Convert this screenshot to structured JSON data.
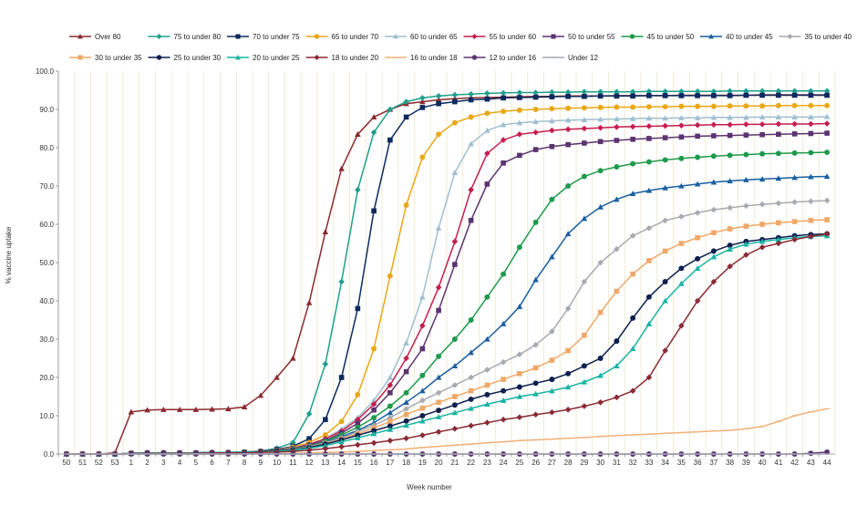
{
  "chart_data": {
    "type": "line",
    "title": "",
    "xlabel": "Week number",
    "ylabel": "% vaccine uptake",
    "ylim": [
      0,
      100
    ],
    "yticks": [
      "0.0",
      "10.0",
      "20.0",
      "30.0",
      "40.0",
      "50.0",
      "60.0",
      "70.0",
      "80.0",
      "90.0",
      "100.0"
    ],
    "grid": "vertical",
    "legend": "top",
    "categories": [
      "50",
      "51",
      "52",
      "53",
      "1",
      "2",
      "3",
      "4",
      "5",
      "6",
      "7",
      "8",
      "9",
      "10",
      "11",
      "12",
      "13",
      "14",
      "15",
      "16",
      "17",
      "18",
      "19",
      "20",
      "21",
      "22",
      "23",
      "24",
      "25",
      "26",
      "27",
      "28",
      "29",
      "30",
      "31",
      "32",
      "33",
      "34",
      "35",
      "36",
      "37",
      "38",
      "39",
      "40",
      "41",
      "42",
      "43",
      "44"
    ],
    "series": [
      {
        "name": "Over 80",
        "color": "#8b2a2e",
        "marker": "triangle",
        "values": [
          0,
          0,
          0,
          0.3,
          11,
          11.5,
          11.6,
          11.6,
          11.6,
          11.7,
          11.8,
          12.3,
          15.3,
          20,
          25,
          39.5,
          58,
          74.5,
          83.5,
          88,
          90,
          91.5,
          92,
          92.5,
          92.8,
          93,
          93.1,
          93.2,
          93.3,
          93.4,
          93.4,
          93.5,
          93.5,
          93.5,
          93.6,
          93.6,
          93.6,
          93.6,
          93.7,
          93.7,
          93.7,
          93.7,
          93.7,
          93.8,
          93.8,
          93.8,
          93.8,
          93.8
        ]
      },
      {
        "name": "75 to under 80",
        "color": "#1fa08e",
        "marker": "diamond",
        "values": [
          0,
          0,
          0,
          0,
          0.2,
          0.3,
          0.3,
          0.3,
          0.3,
          0.4,
          0.4,
          0.5,
          0.8,
          1.5,
          3,
          10.5,
          23.5,
          45,
          69,
          84,
          90,
          92,
          93,
          93.5,
          93.8,
          94,
          94.2,
          94.3,
          94.4,
          94.4,
          94.5,
          94.5,
          94.6,
          94.6,
          94.6,
          94.6,
          94.7,
          94.7,
          94.7,
          94.7,
          94.7,
          94.8,
          94.8,
          94.8,
          94.8,
          94.8,
          94.8,
          94.8
        ]
      },
      {
        "name": "70 to under 75",
        "color": "#0c2a5e",
        "marker": "square",
        "values": [
          0,
          0,
          0,
          0,
          0.2,
          0.3,
          0.3,
          0.3,
          0.3,
          0.4,
          0.4,
          0.5,
          0.7,
          1.2,
          2,
          4,
          9,
          20,
          38,
          63.5,
          82,
          88,
          90.5,
          91.5,
          92,
          92.5,
          92.7,
          93,
          93.1,
          93.2,
          93.3,
          93.4,
          93.4,
          93.5,
          93.5,
          93.5,
          93.6,
          93.6,
          93.6,
          93.6,
          93.6,
          93.6,
          93.7,
          93.7,
          93.7,
          93.7,
          93.7,
          93.7
        ]
      },
      {
        "name": "65 to under 70",
        "color": "#e8a817",
        "marker": "circle",
        "values": [
          0,
          0,
          0,
          0,
          0.2,
          0.3,
          0.3,
          0.3,
          0.3,
          0.4,
          0.4,
          0.5,
          0.7,
          1,
          1.8,
          3,
          5,
          8.5,
          15.5,
          27.5,
          46.5,
          65,
          77.5,
          83.5,
          86.5,
          88,
          89,
          89.5,
          89.8,
          90,
          90.2,
          90.3,
          90.4,
          90.5,
          90.6,
          90.6,
          90.7,
          90.7,
          90.8,
          90.8,
          90.8,
          90.9,
          90.9,
          90.9,
          91,
          91,
          91,
          91
        ]
      },
      {
        "name": "60 to under 65",
        "color": "#9fbfcf",
        "marker": "triangle",
        "values": [
          0,
          0,
          0,
          0,
          0.2,
          0.3,
          0.3,
          0.3,
          0.3,
          0.4,
          0.4,
          0.5,
          0.7,
          1,
          1.6,
          2.6,
          4,
          6.5,
          9.5,
          14,
          20,
          29,
          41,
          59,
          73.5,
          81,
          84.5,
          86,
          86.5,
          86.8,
          87,
          87.2,
          87.3,
          87.4,
          87.5,
          87.6,
          87.7,
          87.7,
          87.8,
          87.8,
          87.9,
          87.9,
          87.9,
          88,
          88,
          88,
          88,
          88.1
        ]
      },
      {
        "name": "55 to under 60",
        "color": "#c41e4e",
        "marker": "diamond",
        "values": [
          0,
          0,
          0,
          0,
          0.2,
          0.3,
          0.3,
          0.3,
          0.3,
          0.4,
          0.4,
          0.5,
          0.7,
          1,
          1.5,
          2.5,
          4,
          6,
          9,
          13,
          18,
          25,
          33.5,
          43.5,
          55.5,
          69,
          78.5,
          82,
          83.5,
          84,
          84.5,
          84.8,
          85,
          85.2,
          85.4,
          85.5,
          85.6,
          85.7,
          85.8,
          85.9,
          86,
          86,
          86.1,
          86.1,
          86.2,
          86.2,
          86.2,
          86.3
        ]
      },
      {
        "name": "50 to under 55",
        "color": "#5c3470",
        "marker": "square",
        "values": [
          0,
          0,
          0,
          0,
          0.2,
          0.3,
          0.3,
          0.3,
          0.3,
          0.4,
          0.4,
          0.5,
          0.6,
          0.9,
          1.4,
          2.3,
          3.5,
          5.5,
          8,
          11.5,
          16,
          21.5,
          27.5,
          37.5,
          49.5,
          61,
          70.5,
          76,
          78,
          79.5,
          80.3,
          80.8,
          81.2,
          81.6,
          81.9,
          82.2,
          82.4,
          82.6,
          82.8,
          83,
          83.1,
          83.2,
          83.3,
          83.4,
          83.5,
          83.6,
          83.7,
          83.8
        ]
      },
      {
        "name": "45 to under 50",
        "color": "#1f9a4c",
        "marker": "circle",
        "values": [
          0,
          0,
          0,
          0,
          0.2,
          0.3,
          0.3,
          0.3,
          0.3,
          0.4,
          0.4,
          0.5,
          0.6,
          0.9,
          1.3,
          2.1,
          3.3,
          5,
          7,
          9.5,
          12.5,
          16,
          20.5,
          25.5,
          30,
          35,
          41,
          47,
          54,
          60.5,
          66.5,
          70,
          72.5,
          74,
          75,
          75.8,
          76.3,
          76.8,
          77.2,
          77.5,
          77.8,
          78,
          78.2,
          78.4,
          78.5,
          78.6,
          78.7,
          78.8
        ]
      },
      {
        "name": "40 to under 45",
        "color": "#1a5fa0",
        "marker": "triangle",
        "values": [
          0,
          0,
          0,
          0,
          0.2,
          0.3,
          0.3,
          0.3,
          0.3,
          0.4,
          0.4,
          0.5,
          0.6,
          0.8,
          1.2,
          2,
          3,
          4.5,
          6.2,
          8.2,
          10.8,
          13.5,
          16.5,
          20,
          23,
          26.5,
          30,
          34,
          38.5,
          45.5,
          51.5,
          57.5,
          61.5,
          64.5,
          66.5,
          68,
          68.8,
          69.5,
          70,
          70.5,
          71,
          71.3,
          71.6,
          71.8,
          72,
          72.2,
          72.4,
          72.5
        ]
      },
      {
        "name": "35 to under 40",
        "color": "#a7aaaf",
        "marker": "diamond",
        "values": [
          0,
          0,
          0,
          0,
          0.2,
          0.3,
          0.3,
          0.3,
          0.3,
          0.4,
          0.4,
          0.5,
          0.6,
          0.8,
          1.2,
          1.9,
          2.9,
          4.2,
          5.8,
          7.5,
          9.5,
          11.8,
          14,
          16,
          18,
          20,
          22,
          24,
          26,
          28.5,
          32,
          38,
          45,
          50,
          53.5,
          57,
          59,
          61,
          62,
          63,
          63.8,
          64.3,
          64.8,
          65.2,
          65.5,
          65.8,
          66,
          66.2
        ]
      },
      {
        "name": "30 to under 35",
        "color": "#f0a868",
        "marker": "square",
        "values": [
          0,
          0,
          0,
          0,
          0.2,
          0.3,
          0.3,
          0.3,
          0.3,
          0.4,
          0.4,
          0.5,
          0.6,
          0.8,
          1.1,
          1.8,
          2.7,
          3.9,
          5.3,
          6.8,
          8.5,
          10.3,
          12,
          13.5,
          15,
          16.5,
          18,
          19.5,
          21,
          22.5,
          24.5,
          27,
          31,
          37,
          42.5,
          47,
          50.5,
          53,
          55,
          56.5,
          57.8,
          58.8,
          59.5,
          60,
          60.4,
          60.7,
          61,
          61.2
        ]
      },
      {
        "name": "25 to under 30",
        "color": "#0c1f4e",
        "marker": "circle",
        "values": [
          0,
          0,
          0,
          0,
          0.2,
          0.3,
          0.3,
          0.3,
          0.3,
          0.4,
          0.4,
          0.5,
          0.6,
          0.8,
          1.1,
          1.7,
          2.6,
          3.7,
          4.9,
          6.1,
          7.3,
          8.6,
          10,
          11.4,
          12.8,
          14.3,
          15.5,
          16.5,
          17.5,
          18.5,
          19.5,
          21,
          23,
          25,
          29.5,
          35.5,
          41,
          45,
          48.5,
          51,
          53,
          54.5,
          55.5,
          56,
          56.5,
          57,
          57.3,
          57.5
        ]
      },
      {
        "name": "20 to under 25",
        "color": "#19b3a3",
        "marker": "triangle",
        "values": [
          0,
          0,
          0,
          0,
          0.2,
          0.3,
          0.3,
          0.3,
          0.3,
          0.4,
          0.4,
          0.5,
          0.5,
          0.7,
          1,
          1.5,
          2.2,
          3.2,
          4.2,
          5.3,
          6.4,
          7.5,
          8.6,
          9.7,
          10.8,
          11.9,
          13,
          14,
          15,
          15.7,
          16.5,
          17.5,
          18.8,
          20.5,
          23,
          27.5,
          34,
          40,
          44.5,
          48.5,
          51.5,
          53.5,
          54.8,
          55.5,
          56,
          56.5,
          56.8,
          57
        ]
      },
      {
        "name": "18 to under 20",
        "color": "#8a2a34",
        "marker": "diamond",
        "values": [
          0,
          0,
          0,
          0,
          0.1,
          0.2,
          0.2,
          0.2,
          0.2,
          0.3,
          0.3,
          0.3,
          0.4,
          0.5,
          0.7,
          1,
          1.4,
          1.9,
          2.4,
          2.9,
          3.5,
          4.1,
          4.9,
          5.8,
          6.6,
          7.4,
          8.2,
          9,
          9.6,
          10.3,
          10.9,
          11.6,
          12.5,
          13.5,
          14.8,
          16.5,
          20,
          27,
          33.5,
          40,
          45,
          49,
          52,
          54,
          55,
          56,
          56.8,
          57.5
        ]
      },
      {
        "name": "16 to under 18",
        "color": "#f0b27a",
        "marker": "line",
        "values": [
          0,
          0,
          0,
          0,
          0,
          0,
          0,
          0,
          0,
          0,
          0,
          0,
          0.1,
          0.1,
          0.2,
          0.3,
          0.4,
          0.5,
          0.7,
          0.9,
          1.1,
          1.3,
          1.7,
          2,
          2.3,
          2.6,
          2.9,
          3.2,
          3.5,
          3.7,
          3.9,
          4.1,
          4.3,
          4.6,
          4.8,
          5,
          5.2,
          5.4,
          5.6,
          5.8,
          6,
          6.2,
          6.6,
          7.2,
          8.5,
          10,
          11,
          11.8
        ]
      },
      {
        "name": "12 to under 16",
        "color": "#5a3670",
        "marker": "circle",
        "values": [
          0,
          0,
          0,
          0,
          0,
          0,
          0,
          0,
          0,
          0,
          0,
          0,
          0,
          0,
          0,
          0,
          0,
          0,
          0,
          0,
          0,
          0,
          0,
          0,
          0,
          0,
          0,
          0,
          0,
          0,
          0,
          0,
          0,
          0,
          0,
          0,
          0,
          0,
          0,
          0,
          0,
          0,
          0,
          0,
          0,
          0,
          0.2,
          0.5
        ]
      },
      {
        "name": "Under 12",
        "color": "#a5aab5",
        "marker": "line",
        "values": [
          0,
          0,
          0,
          0,
          0,
          0,
          0,
          0,
          0,
          0,
          0,
          0,
          0,
          0,
          0,
          0,
          0,
          0,
          0,
          0,
          0,
          0,
          0,
          0,
          0,
          0,
          0,
          0,
          0,
          0,
          0,
          0,
          0,
          0,
          0,
          0,
          0,
          0,
          0,
          0,
          0,
          0,
          0,
          0,
          0,
          0,
          0,
          0
        ]
      }
    ]
  }
}
